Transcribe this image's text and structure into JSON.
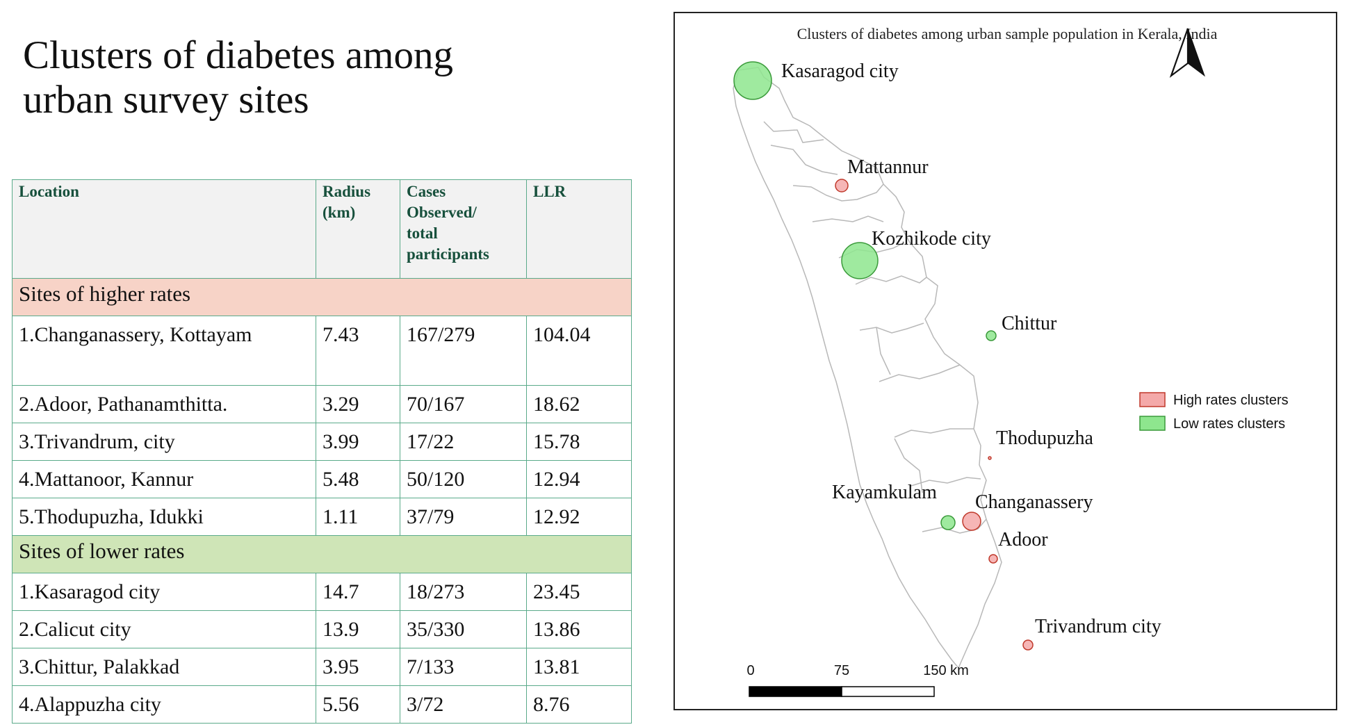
{
  "slide": {
    "title_line1": "Clusters of diabetes among",
    "title_line2": "urban survey sites"
  },
  "table": {
    "headers": {
      "location": "Location",
      "radius_line1": "Radius",
      "radius_line2": "(km)",
      "cases_line1": "Cases",
      "cases_line2": "Observed/",
      "cases_line3": "total",
      "cases_line4": "participants",
      "llr": "LLR"
    },
    "section_high": "Sites of higher rates",
    "high_rows": [
      {
        "location": "1.Changanassery, Kottayam",
        "radius": "7.43",
        "cases": "167/279",
        "llr": "104.04"
      },
      {
        "location": "2.Adoor, Pathanamthitta.",
        "radius": "3.29",
        "cases": "70/167",
        "llr": "18.62"
      },
      {
        "location": "3.Trivandrum, city",
        "radius": "3.99",
        "cases": "17/22",
        "llr": "15.78"
      },
      {
        "location": "4.Mattanoor, Kannur",
        "radius": "5.48",
        "cases": "50/120",
        "llr": "12.94"
      },
      {
        "location": "5.Thodupuzha, Idukki",
        "radius": "1.11",
        "cases": "37/79",
        "llr": "12.92"
      }
    ],
    "section_low": "Sites of lower rates",
    "low_rows": [
      {
        "location": "1.Kasaragod city",
        "radius": "14.7",
        "cases": "18/273",
        "llr": "23.45"
      },
      {
        "location": "2.Calicut city",
        "radius": "13.9",
        "cases": "35/330",
        "llr": "13.86"
      },
      {
        "location": "3.Chittur, Palakkad",
        "radius": "3.95",
        "cases": "7/133",
        "llr": "13.81"
      },
      {
        "location": "4.Alappuzha city",
        "radius": "5.56",
        "cases": "3/72",
        "llr": "8.76"
      }
    ]
  },
  "map": {
    "title": "Clusters of diabetes among urban sample population in Kerala, India",
    "legend": {
      "high": "High rates clusters",
      "low": "Low rates clusters"
    },
    "colors": {
      "high_fill": "#f4a9a9",
      "high_stroke": "#c0392b",
      "low_fill": "#8ee68e",
      "low_stroke": "#3a9a3a",
      "boundary": "#b5b5b5"
    },
    "places": [
      {
        "name": "Kasaragod city",
        "type": "low",
        "radius_km": 14.7
      },
      {
        "name": "Mattannur",
        "type": "high",
        "radius_km": 5.48
      },
      {
        "name": "Kozhikode city",
        "type": "low",
        "radius_km": 13.9
      },
      {
        "name": "Chittur",
        "type": "low",
        "radius_km": 3.95
      },
      {
        "name": "Thodupuzha",
        "type": "high",
        "radius_km": 1.11
      },
      {
        "name": "Kayamkulam",
        "type": "low",
        "radius_km": 5.56
      },
      {
        "name": "Changanassery",
        "type": "high",
        "radius_km": 7.43
      },
      {
        "name": "Adoor",
        "type": "high",
        "radius_km": 3.29
      },
      {
        "name": "Trivandrum city",
        "type": "high",
        "radius_km": 3.99
      }
    ],
    "scale_bar": {
      "label_0": "0",
      "label_75": "75",
      "label_150": "150 km"
    },
    "north_arrow": "north-arrow-icon"
  }
}
